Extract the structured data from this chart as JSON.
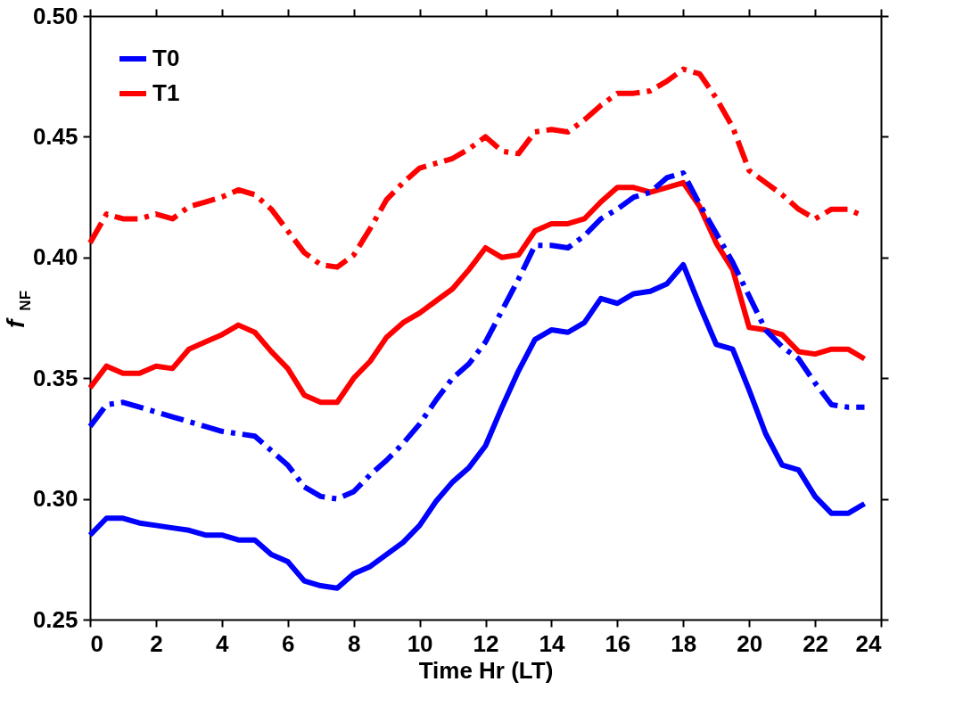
{
  "chart_data": {
    "type": "line",
    "xlabel": "Time Hr (LT)",
    "ylabel": "f$_{NF}$",
    "x": [
      0,
      0.5,
      1,
      1.5,
      2,
      2.5,
      3,
      3.5,
      4,
      4.5,
      5,
      5.5,
      6,
      6.5,
      7,
      7.5,
      8,
      8.5,
      9,
      9.5,
      10,
      10.5,
      11,
      11.5,
      12,
      12.5,
      13,
      13.5,
      14,
      14.5,
      15,
      15.5,
      16,
      16.5,
      17,
      17.5,
      18,
      18.5,
      19,
      19.5,
      20,
      20.5,
      21,
      21.5,
      22,
      22.5,
      23,
      23.5
    ],
    "series": [
      {
        "name": "T0",
        "color": "#0000ff",
        "line_style": "solid",
        "values": [
          0.285,
          0.292,
          0.292,
          0.29,
          0.289,
          0.288,
          0.287,
          0.285,
          0.285,
          0.283,
          0.283,
          0.277,
          0.274,
          0.266,
          0.264,
          0.263,
          0.269,
          0.272,
          0.277,
          0.282,
          0.289,
          0.299,
          0.307,
          0.313,
          0.322,
          0.338,
          0.353,
          0.366,
          0.37,
          0.369,
          0.373,
          0.383,
          0.381,
          0.385,
          0.386,
          0.389,
          0.397,
          0.38,
          0.364,
          0.362,
          0.345,
          0.327,
          0.314,
          0.312,
          0.301,
          0.294,
          0.294,
          0.298
        ]
      },
      {
        "name": "T1",
        "color": "#ff0000",
        "line_style": "solid",
        "values": [
          0.346,
          0.355,
          0.352,
          0.352,
          0.355,
          0.354,
          0.362,
          0.365,
          0.368,
          0.372,
          0.369,
          0.361,
          0.354,
          0.343,
          0.34,
          0.34,
          0.35,
          0.357,
          0.367,
          0.373,
          0.377,
          0.382,
          0.387,
          0.395,
          0.404,
          0.4,
          0.401,
          0.411,
          0.414,
          0.414,
          0.416,
          0.423,
          0.429,
          0.429,
          0.427,
          0.429,
          0.431,
          0.421,
          0.406,
          0.395,
          0.371,
          0.37,
          0.368,
          0.361,
          0.36,
          0.362,
          0.362,
          0.358
        ]
      },
      {
        "color": "#0000ff",
        "line_style": "dashdot",
        "values": [
          0.33,
          0.339,
          0.34,
          0.338,
          0.336,
          0.334,
          0.332,
          0.33,
          0.328,
          0.327,
          0.326,
          0.32,
          0.314,
          0.305,
          0.301,
          0.3,
          0.303,
          0.31,
          0.316,
          0.323,
          0.331,
          0.341,
          0.35,
          0.356,
          0.365,
          0.378,
          0.391,
          0.405,
          0.405,
          0.404,
          0.409,
          0.416,
          0.42,
          0.425,
          0.427,
          0.433,
          0.435,
          0.422,
          0.41,
          0.398,
          0.384,
          0.37,
          0.363,
          0.358,
          0.348,
          0.339,
          0.338,
          0.338
        ]
      },
      {
        "color": "#ff0000",
        "line_style": "dashdot",
        "values": [
          0.406,
          0.418,
          0.416,
          0.416,
          0.418,
          0.416,
          0.421,
          0.423,
          0.425,
          0.428,
          0.426,
          0.42,
          0.411,
          0.402,
          0.397,
          0.396,
          0.401,
          0.412,
          0.424,
          0.431,
          0.437,
          0.439,
          0.441,
          0.445,
          0.45,
          0.444,
          0.443,
          0.452,
          0.453,
          0.452,
          0.457,
          0.463,
          0.468,
          0.468,
          0.469,
          0.473,
          0.478,
          0.476,
          0.466,
          0.454,
          0.436,
          0.431,
          0.426,
          0.42,
          0.416,
          0.42,
          0.42,
          0.417
        ]
      }
    ],
    "xlim": [
      0,
      24
    ],
    "xticks": [
      0,
      2,
      4,
      6,
      8,
      10,
      12,
      14,
      16,
      18,
      20,
      22,
      24
    ],
    "ylim": [
      0.25,
      0.5
    ],
    "yticks": [
      0.25,
      {
        "value": 0.3,
        "label": "0.30"
      },
      0.35,
      {
        "value": 0.4,
        "label": "0.40"
      },
      0.45,
      {
        "value": 0.5,
        "label": "0.50"
      }
    ],
    "grid": false,
    "legend": "top left",
    "marker": "none"
  }
}
